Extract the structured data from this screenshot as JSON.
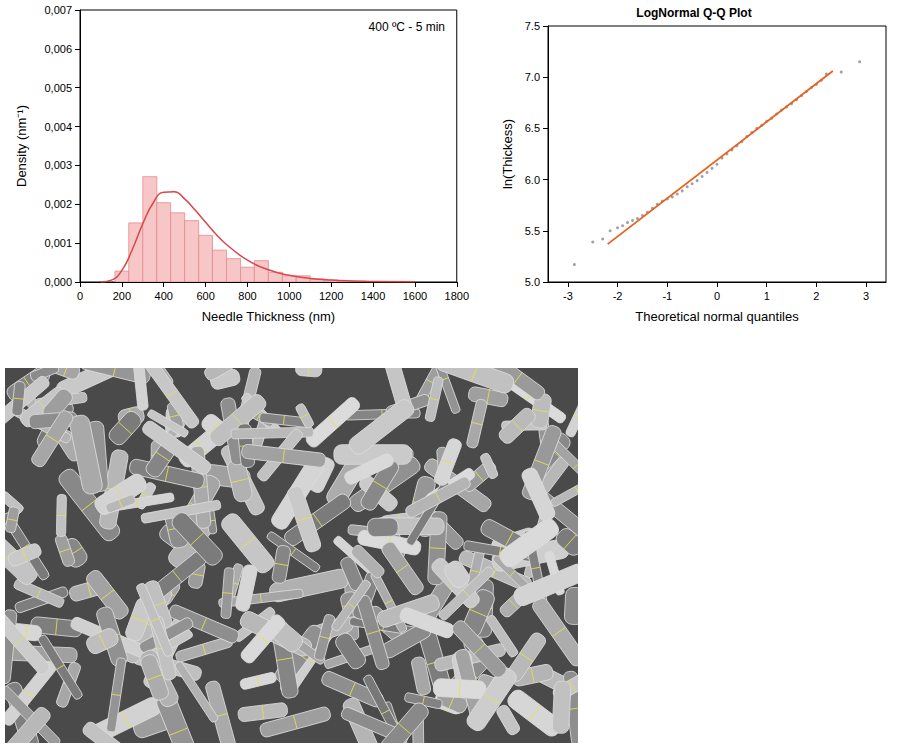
{
  "chart_data": [
    {
      "type": "histogram",
      "title": "400 ºC - 5 min",
      "x_label": "Needle Thickness (nm)",
      "y_label": "Density (nm⁻¹)",
      "bins": [
        167,
        233,
        300,
        367,
        433,
        500,
        567,
        633,
        700,
        767,
        833,
        900,
        967,
        1033,
        1100,
        1167,
        1233,
        1300,
        1367
      ],
      "values": [
        0.00028,
        0.00152,
        0.00271,
        0.00204,
        0.00178,
        0.00158,
        0.0012,
        0.00082,
        0.0006,
        0.00038,
        0.00055,
        0.00025,
        0.00016,
        0.00016,
        8e-05,
        5e-05,
        3e-05,
        2e-05
      ],
      "color": "#f7c6c7",
      "series": [
        {
          "type": "line",
          "color": "#d9474b",
          "x": [
            100,
            150,
            200,
            250,
            300,
            350,
            400,
            450,
            500,
            550,
            600,
            650,
            700,
            800,
            900,
            1000,
            1100,
            1200,
            1300,
            1400,
            1600
          ],
          "values": [
            1.2e-06,
            4.7e-05,
            0.000298,
            0.000838,
            0.0015,
            0.00204,
            0.00231,
            0.00232,
            0.00214,
            0.00185,
            0.00154,
            0.00123,
            0.000966,
            0.000562,
            0.000314,
            0.000171,
            9.26e-05,
            4.96e-05,
            2.67e-05,
            1.45e-05,
            4e-06
          ]
        }
      ],
      "xlim": [
        0,
        1800
      ],
      "xticks": [
        0,
        200,
        400,
        600,
        800,
        1000,
        1200,
        1400,
        1600,
        1800
      ],
      "ylim": [
        0,
        0.007
      ],
      "yticks": [
        {
          "value": 0,
          "label": "0,000"
        },
        {
          "value": 0.001,
          "label": "0,001"
        },
        {
          "value": 0.002,
          "label": "0,002"
        },
        {
          "value": 0.003,
          "label": "0,003"
        },
        {
          "value": 0.004,
          "label": "0,004"
        },
        {
          "value": 0.005,
          "label": "0,005"
        },
        {
          "value": 0.006,
          "label": "0,006"
        },
        {
          "value": 0.007,
          "label": "0,007"
        }
      ],
      "grid": false
    },
    {
      "type": "scatter",
      "title": "LogNormal Q-Q Plot",
      "x_label": "Theoretical normal quantiles",
      "y_label": "ln(Thickess)",
      "series": [
        {
          "type": "scatter",
          "color": "#8a8a8a",
          "marker": "circle",
          "x": [
            -2.87,
            -2.5,
            -2.3,
            -2.15,
            -2.0,
            -1.9,
            -1.8,
            -1.7,
            -1.6,
            -1.5,
            -1.4,
            -1.3,
            -1.2,
            -1.1,
            -1.0,
            -0.9,
            -0.8,
            -0.7,
            -0.6,
            -0.5,
            -0.4,
            -0.3,
            -0.2,
            -0.1,
            0,
            0.1,
            0.2,
            0.3,
            0.4,
            0.5,
            0.6,
            0.7,
            0.8,
            0.9,
            1.0,
            1.1,
            1.2,
            1.3,
            1.4,
            1.5,
            1.6,
            1.7,
            1.8,
            1.9,
            2.0,
            2.1,
            2.2,
            2.5,
            2.87
          ],
          "values": [
            5.17,
            5.39,
            5.42,
            5.5,
            5.53,
            5.55,
            5.58,
            5.6,
            5.62,
            5.65,
            5.68,
            5.72,
            5.76,
            5.79,
            5.81,
            5.83,
            5.86,
            5.89,
            5.93,
            5.96,
            5.99,
            6.03,
            6.07,
            6.11,
            6.15,
            6.21,
            6.25,
            6.29,
            6.33,
            6.37,
            6.42,
            6.46,
            6.5,
            6.53,
            6.57,
            6.6,
            6.64,
            6.68,
            6.71,
            6.74,
            6.78,
            6.82,
            6.86,
            6.9,
            6.93,
            6.97,
            7.03,
            7.05,
            7.15
          ]
        },
        {
          "type": "line",
          "color": "#e8601c",
          "line_style": "solid",
          "x": [
            -2.2,
            2.33
          ],
          "values": [
            5.37,
            7.06
          ]
        }
      ],
      "xlim": [
        -3.4,
        3.4
      ],
      "xticks": [
        -3,
        -2,
        -1,
        0,
        1,
        2,
        3
      ],
      "ylim": [
        5,
        7.5
      ],
      "yticks": [
        {
          "value": 5,
          "label": "5.0"
        },
        {
          "value": 5.5,
          "label": "5.5"
        },
        {
          "value": 6,
          "label": "6.0"
        },
        {
          "value": 6.5,
          "label": "6.5"
        },
        {
          "value": 7,
          "label": "7.0"
        },
        {
          "value": 7.5,
          "label": "7.5"
        }
      ],
      "grid": false
    }
  ]
}
